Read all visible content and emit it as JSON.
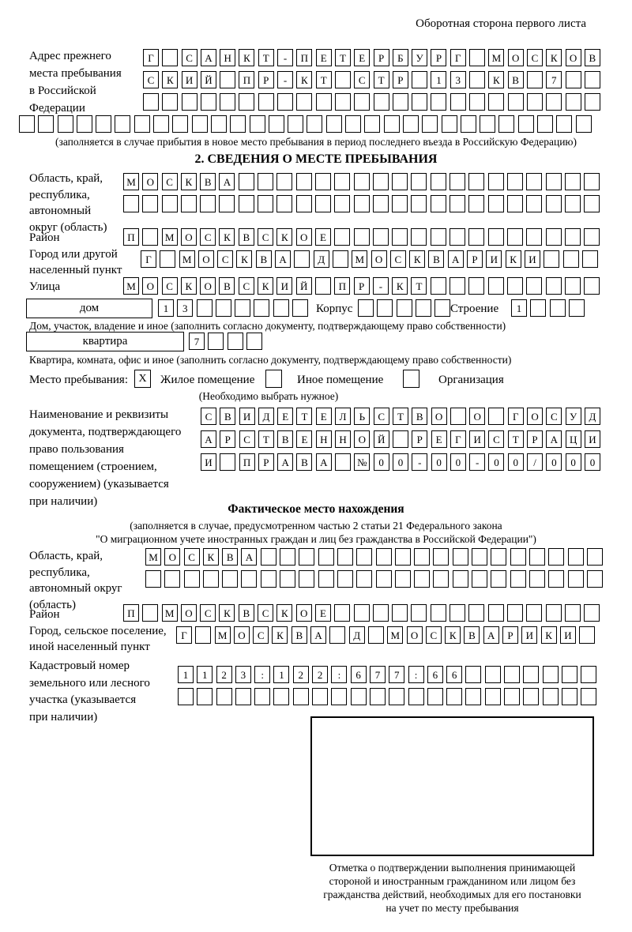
{
  "header": {
    "corner_note": "Оборотная сторона первого листа"
  },
  "prev_address": {
    "label_lines": [
      "Адрес прежнего",
      "места пребывания",
      "в Российской",
      "Федерации"
    ],
    "caption": "(заполняется в случае прибытия в новое место пребывания в период последнего въезда в Российскую Федерацию)"
  },
  "section2": {
    "title": "2. СВЕДЕНИЯ О МЕСТЕ ПРЕБЫВАНИЯ",
    "region_label_lines": [
      "Область, край,",
      "республика,",
      "автономный",
      "округ (область)"
    ],
    "district_label": "Район",
    "city_label_lines": [
      "Город или другой",
      "населенный пункт"
    ],
    "street_label": "Улица",
    "house_box_label": "дом",
    "korpus_label": "Корпус",
    "stroenie_label": "Строение",
    "house_caption": "Дом, участок, владение и иное (заполнить согласно документу, подтверждающему право собственности)",
    "apartment_box_label": "квартира",
    "apartment_caption": "Квартира, комната, офис и иное (заполнить согласно документу, подтверждающему право собственности)",
    "stay_type_label": "Место пребывания:",
    "stay_option_1": "Жилое помещение",
    "stay_option_2": "Иное помещение",
    "stay_option_3": "Организация",
    "stay_checked_value": "X",
    "choose_caption": "(Необходимо выбрать нужное)",
    "doc_label_lines": [
      "Наименование и реквизиты",
      "документа, подтверждающего",
      "право пользования",
      "помещением (строением,",
      "сооружением) (указывается",
      "при наличии)"
    ]
  },
  "fact_section": {
    "title": "Фактическое место нахождения",
    "caption_line_1": "(заполняется в случае, предусмотренном частью 2 статьи 21 Федерального закона",
    "caption_line_2": "\"О миграционном учете иностранных граждан и лиц без гражданства в Российской Федерации\")",
    "region_label_lines": [
      "Область, край,",
      "республика,",
      "автономный округ",
      "(область)"
    ],
    "district_label": "Район",
    "city_label_lines": [
      "Город, сельское поселение,",
      "иной населенный пункт"
    ],
    "cadastral_label_lines": [
      "Кадастровый номер",
      "земельного или лесного",
      "участка (указывается",
      "при наличии)"
    ],
    "stamp_caption_lines": [
      "Отметка о подтверждении выполнения принимающей",
      "стороной и иностранным гражданином или лицом без",
      "гражданства действий, необходимых для его постановки",
      "на учет по месту пребывания"
    ]
  },
  "rows": {
    "prev_address_1": "Г САНКТ-ПЕТЕРБУРГ МОСКОВ",
    "prev_address_2": "СКИЙ ПР-КТ СТР 13 КВ 7",
    "prev_address_3": "",
    "prev_address_4": "",
    "region_1": "МОСКВА",
    "region_2": "",
    "district": "П МОСКВСКОЕ",
    "city": "Г МОСКВА Д МОСКВАРИКИ",
    "street": "МОСКОВСКИЙ ПР-КТ",
    "house_number": "13",
    "korpus": "",
    "stroenie": "1",
    "apartment_number": "7",
    "doc_1": "СВИДЕТЕЛЬСТВО О ГОСУД",
    "doc_2": "АРСТВЕННОЙ РЕГИСТРАЦИ",
    "doc_3": "И ПРАВА №00-00-00/000",
    "fact_region_1": "МОСКВА",
    "fact_region_2": "",
    "fact_district": "П МОСКВСКОЕ",
    "fact_city": "Г МОСКВА Д МОСКВАРИКИ",
    "cadastral_1": "1123:122:677:66",
    "cadastral_2": ""
  }
}
